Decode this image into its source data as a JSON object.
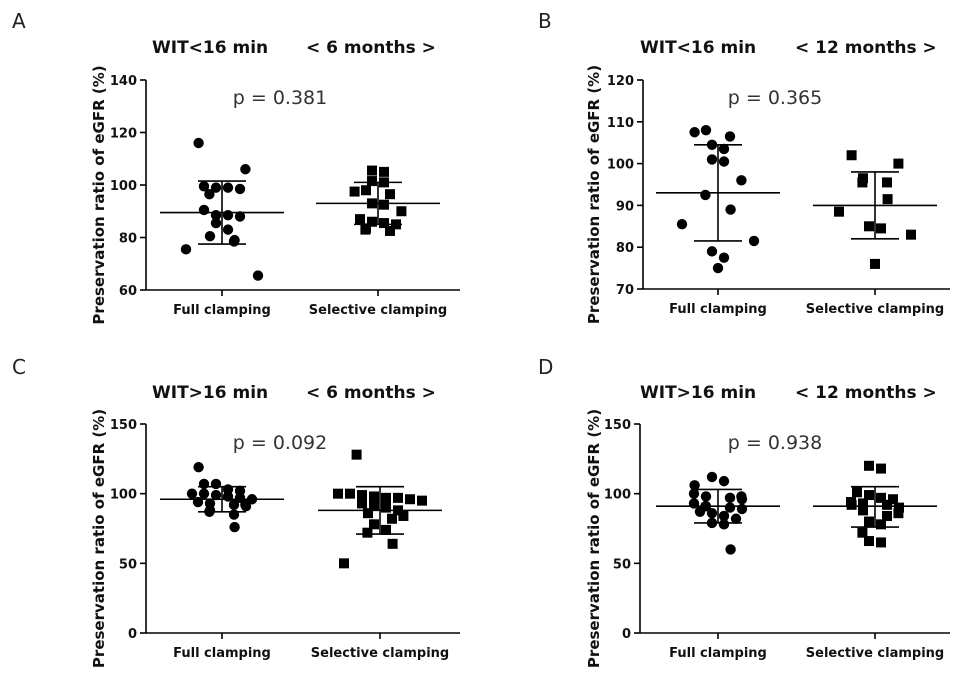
{
  "chart_data": [
    {
      "type": "scatter",
      "panel": "A",
      "title": "WIT<16 min",
      "subtitle": "< 6 months >",
      "annotation": "p = 0.381",
      "ylabel": "Preservation ratio of eGFR (%)",
      "ylim": [
        60,
        140
      ],
      "yticks": [
        "60",
        "80",
        "100",
        "120",
        "140"
      ],
      "categories": [
        "Full clamping",
        "Selective clamping"
      ],
      "series": [
        {
          "marker": "circle",
          "points": [
            116,
            106,
            99.5,
            99,
            99,
            98.5,
            96.5,
            90.5,
            88.5,
            88.5,
            88,
            85.5,
            83,
            80.5,
            79,
            78.5,
            75.5,
            65.5
          ],
          "mean": 89.5,
          "sd_upper": 101.5,
          "sd_lower": 77.5
        },
        {
          "marker": "square",
          "points": [
            105.5,
            105,
            101.5,
            101,
            98,
            97.5,
            96.5,
            93,
            92.5,
            90,
            87,
            86,
            85.5,
            85,
            83.5,
            83,
            82.5
          ],
          "mean": 93,
          "sd_upper": 101,
          "sd_lower": 85
        }
      ]
    },
    {
      "type": "scatter",
      "panel": "B",
      "title": "WIT<16 min",
      "subtitle": "< 12 months >",
      "annotation": "p = 0.365",
      "ylabel": "Preservation ratio of eGFR (%)",
      "ylim": [
        70,
        120
      ],
      "yticks": [
        "70",
        "80",
        "90",
        "100",
        "110",
        "120"
      ],
      "categories": [
        "Full clamping",
        "Selective clamping"
      ],
      "series": [
        {
          "marker": "circle",
          "points": [
            108,
            107.5,
            106.5,
            104.5,
            103.5,
            101,
            100.5,
            96,
            92.5,
            89,
            85.5,
            81.5,
            79,
            77.5,
            75
          ],
          "mean": 93,
          "sd_upper": 104.5,
          "sd_lower": 81.5
        },
        {
          "marker": "square",
          "points": [
            102,
            100,
            96.5,
            95.5,
            95.5,
            91.5,
            88.5,
            85,
            84.5,
            83,
            76
          ],
          "mean": 90,
          "sd_upper": 98,
          "sd_lower": 82
        }
      ]
    },
    {
      "type": "scatter",
      "panel": "C",
      "title": "WIT>16 min",
      "subtitle": "< 6 months >",
      "annotation": "p = 0.092",
      "ylabel": "Preservation ratio of eGFR (%)",
      "ylim": [
        0,
        150
      ],
      "yticks": [
        "0",
        "50",
        "100",
        "150"
      ],
      "categories": [
        "Full clamping",
        "Selective clamping"
      ],
      "series": [
        {
          "marker": "circle",
          "points": [
            119,
            107,
            107,
            103,
            102,
            100,
            100,
            99,
            98,
            97,
            96,
            94,
            93,
            92,
            92,
            91,
            88,
            87,
            85,
            76
          ],
          "mean": 96,
          "sd_upper": 105,
          "sd_lower": 87
        },
        {
          "marker": "square",
          "points": [
            128,
            100,
            100,
            99,
            98,
            97,
            97,
            96,
            95,
            93,
            92,
            90,
            88,
            86,
            84,
            82,
            78,
            74,
            72,
            64,
            50
          ],
          "mean": 88,
          "sd_upper": 105,
          "sd_lower": 71
        }
      ]
    },
    {
      "type": "scatter",
      "panel": "D",
      "title": "WIT>16 min",
      "subtitle": "< 12 months >",
      "annotation": "p = 0.938",
      "ylabel": "Preservation ratio of eGFR (%)",
      "ylim": [
        0,
        150
      ],
      "yticks": [
        "0",
        "50",
        "100",
        "150"
      ],
      "categories": [
        "Full clamping",
        "Selective clamping"
      ],
      "series": [
        {
          "marker": "circle",
          "points": [
            112,
            109,
            106,
            100,
            98,
            98,
            97,
            96,
            93,
            91,
            91,
            90,
            89,
            87,
            86,
            84,
            82,
            79,
            78,
            60
          ],
          "mean": 91,
          "sd_upper": 103,
          "sd_lower": 79
        },
        {
          "marker": "square",
          "points": [
            120,
            118,
            101,
            99,
            97,
            96,
            94,
            93,
            92,
            92,
            90,
            88,
            86,
            84,
            80,
            78,
            72,
            66,
            65
          ],
          "mean": 91,
          "sd_upper": 105,
          "sd_lower": 76
        }
      ]
    }
  ]
}
